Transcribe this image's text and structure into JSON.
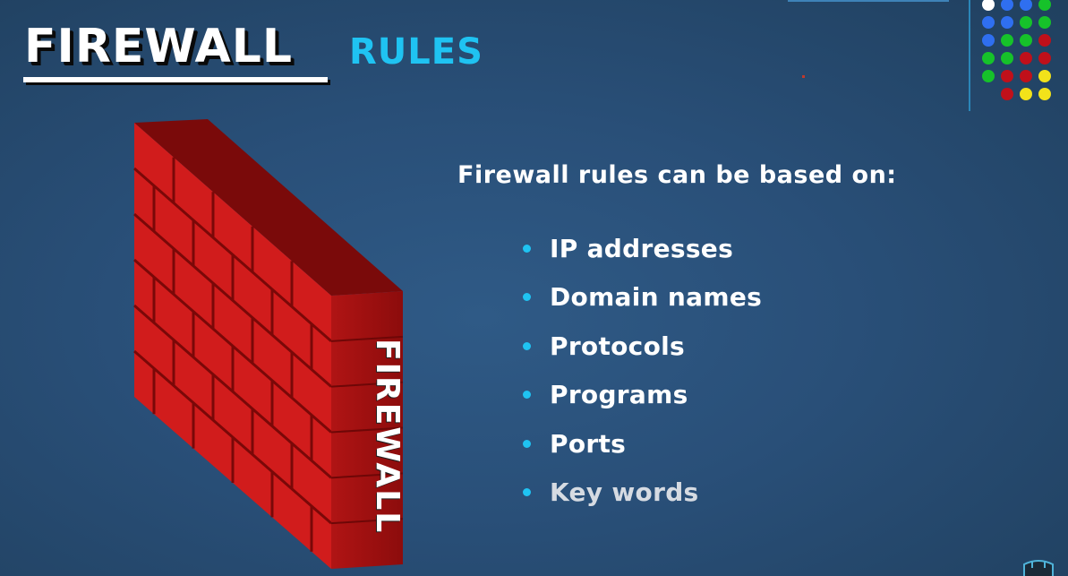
{
  "slide": {
    "title": "FIREWALL",
    "subtitle": "RULES",
    "intro": "Firewall rules can be based on:",
    "bullets": [
      "IP addresses",
      "Domain names",
      "Protocols",
      "Programs",
      "Ports",
      "Key words"
    ]
  },
  "wall": {
    "label": "FIREWALL"
  },
  "dot_grid": {
    "rows": [
      [
        "white",
        "blue",
        "blue",
        "green"
      ],
      [
        "blue",
        "blue",
        "green",
        "green"
      ],
      [
        "blue",
        "green",
        "green",
        "red"
      ],
      [
        "green",
        "green",
        "red",
        "red"
      ],
      [
        "green",
        "red",
        "red",
        "yellow"
      ],
      [
        "",
        "red",
        "yellow",
        "yellow"
      ]
    ]
  },
  "colors": {
    "background": "#294f78",
    "accent": "#1fc3f2",
    "brick": "#d91e1e",
    "dot_white": "#ffffff",
    "dot_blue": "#2f6ff0",
    "dot_green": "#16c22a",
    "dot_red": "#c0101a",
    "dot_yellow": "#f2e21a"
  }
}
